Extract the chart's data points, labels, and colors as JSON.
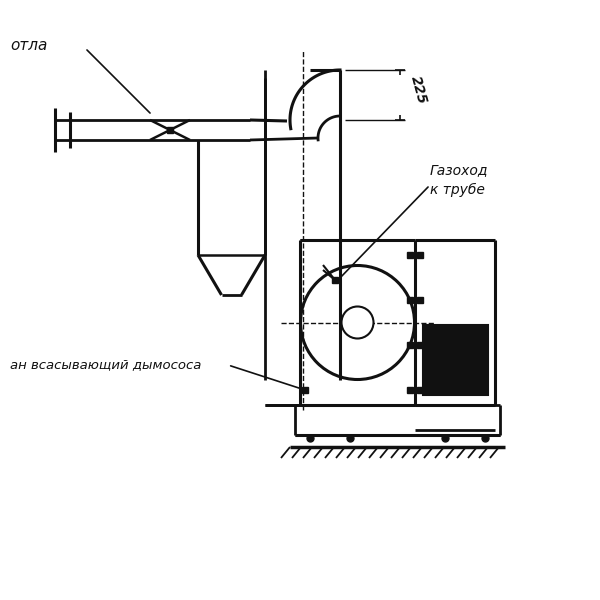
{
  "bg_color": "#ffffff",
  "lc": "#111111",
  "label_kotla": "отла",
  "label_gazokhod": "Газоход\nк трубе",
  "label_dimosos": "ан всасывающий дымососа",
  "dim_225": "225"
}
